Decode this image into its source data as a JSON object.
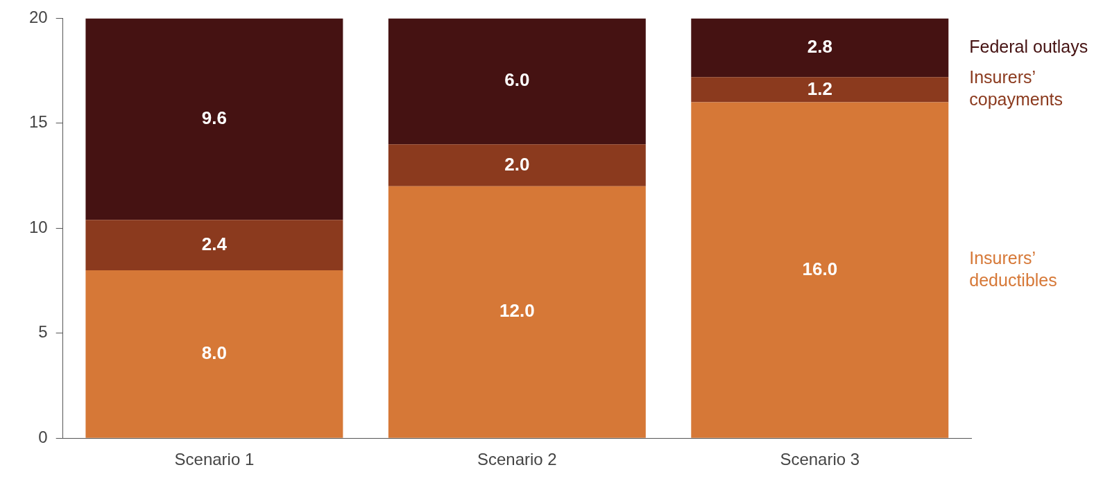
{
  "chart_data": {
    "type": "bar",
    "stacked": true,
    "categories": [
      "Scenario 1",
      "Scenario 2",
      "Scenario 3"
    ],
    "series": [
      {
        "name": "Insurers’ deductibles",
        "color": "#d67837",
        "values": [
          8.0,
          12.0,
          16.0
        ],
        "value_labels": [
          "8.0",
          "12.0",
          "16.0"
        ]
      },
      {
        "name": "Insurers’ copayments",
        "color": "#8b3a1e",
        "values": [
          2.4,
          2.0,
          1.2
        ],
        "value_labels": [
          "2.4",
          "2.0",
          "1.2"
        ]
      },
      {
        "name": "Federal outlays",
        "color": "#451212",
        "values": [
          9.6,
          6.0,
          2.8
        ],
        "value_labels": [
          "9.6",
          "6.0",
          "2.8"
        ]
      }
    ],
    "ylim": [
      0,
      20
    ],
    "yticks": [
      0,
      5,
      10,
      15,
      20
    ],
    "grid": false
  }
}
